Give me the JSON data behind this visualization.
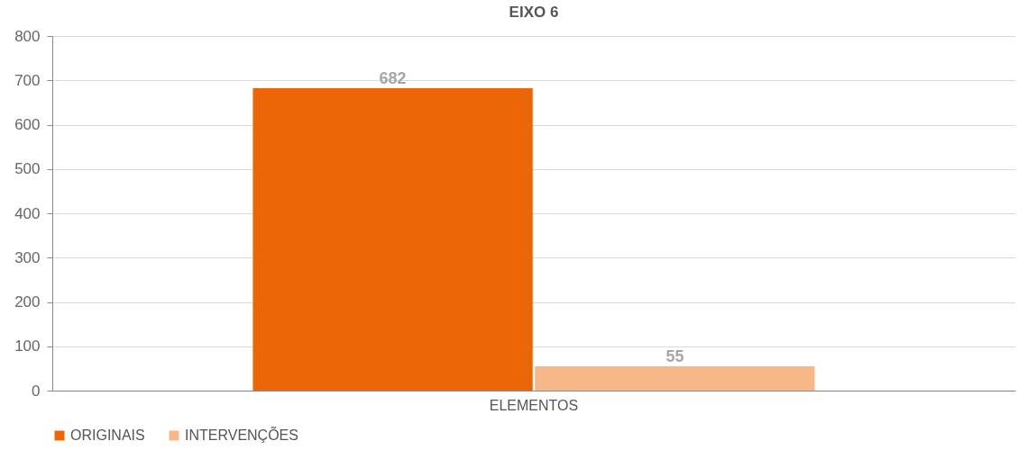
{
  "chart_data": {
    "type": "bar",
    "title": "EIXO 6",
    "categories": [
      "ELEMENTOS"
    ],
    "series": [
      {
        "name": "ORIGINAIS",
        "color": "#ec6608",
        "values": [
          682
        ]
      },
      {
        "name": "INTERVENÇÕES",
        "color": "#f7b786",
        "values": [
          55
        ]
      }
    ],
    "ylim": [
      0,
      800
    ],
    "yticks": [
      0,
      100,
      200,
      300,
      400,
      500,
      600,
      700,
      800
    ],
    "grid": "y",
    "legend": "bottom",
    "data_labels": true
  }
}
